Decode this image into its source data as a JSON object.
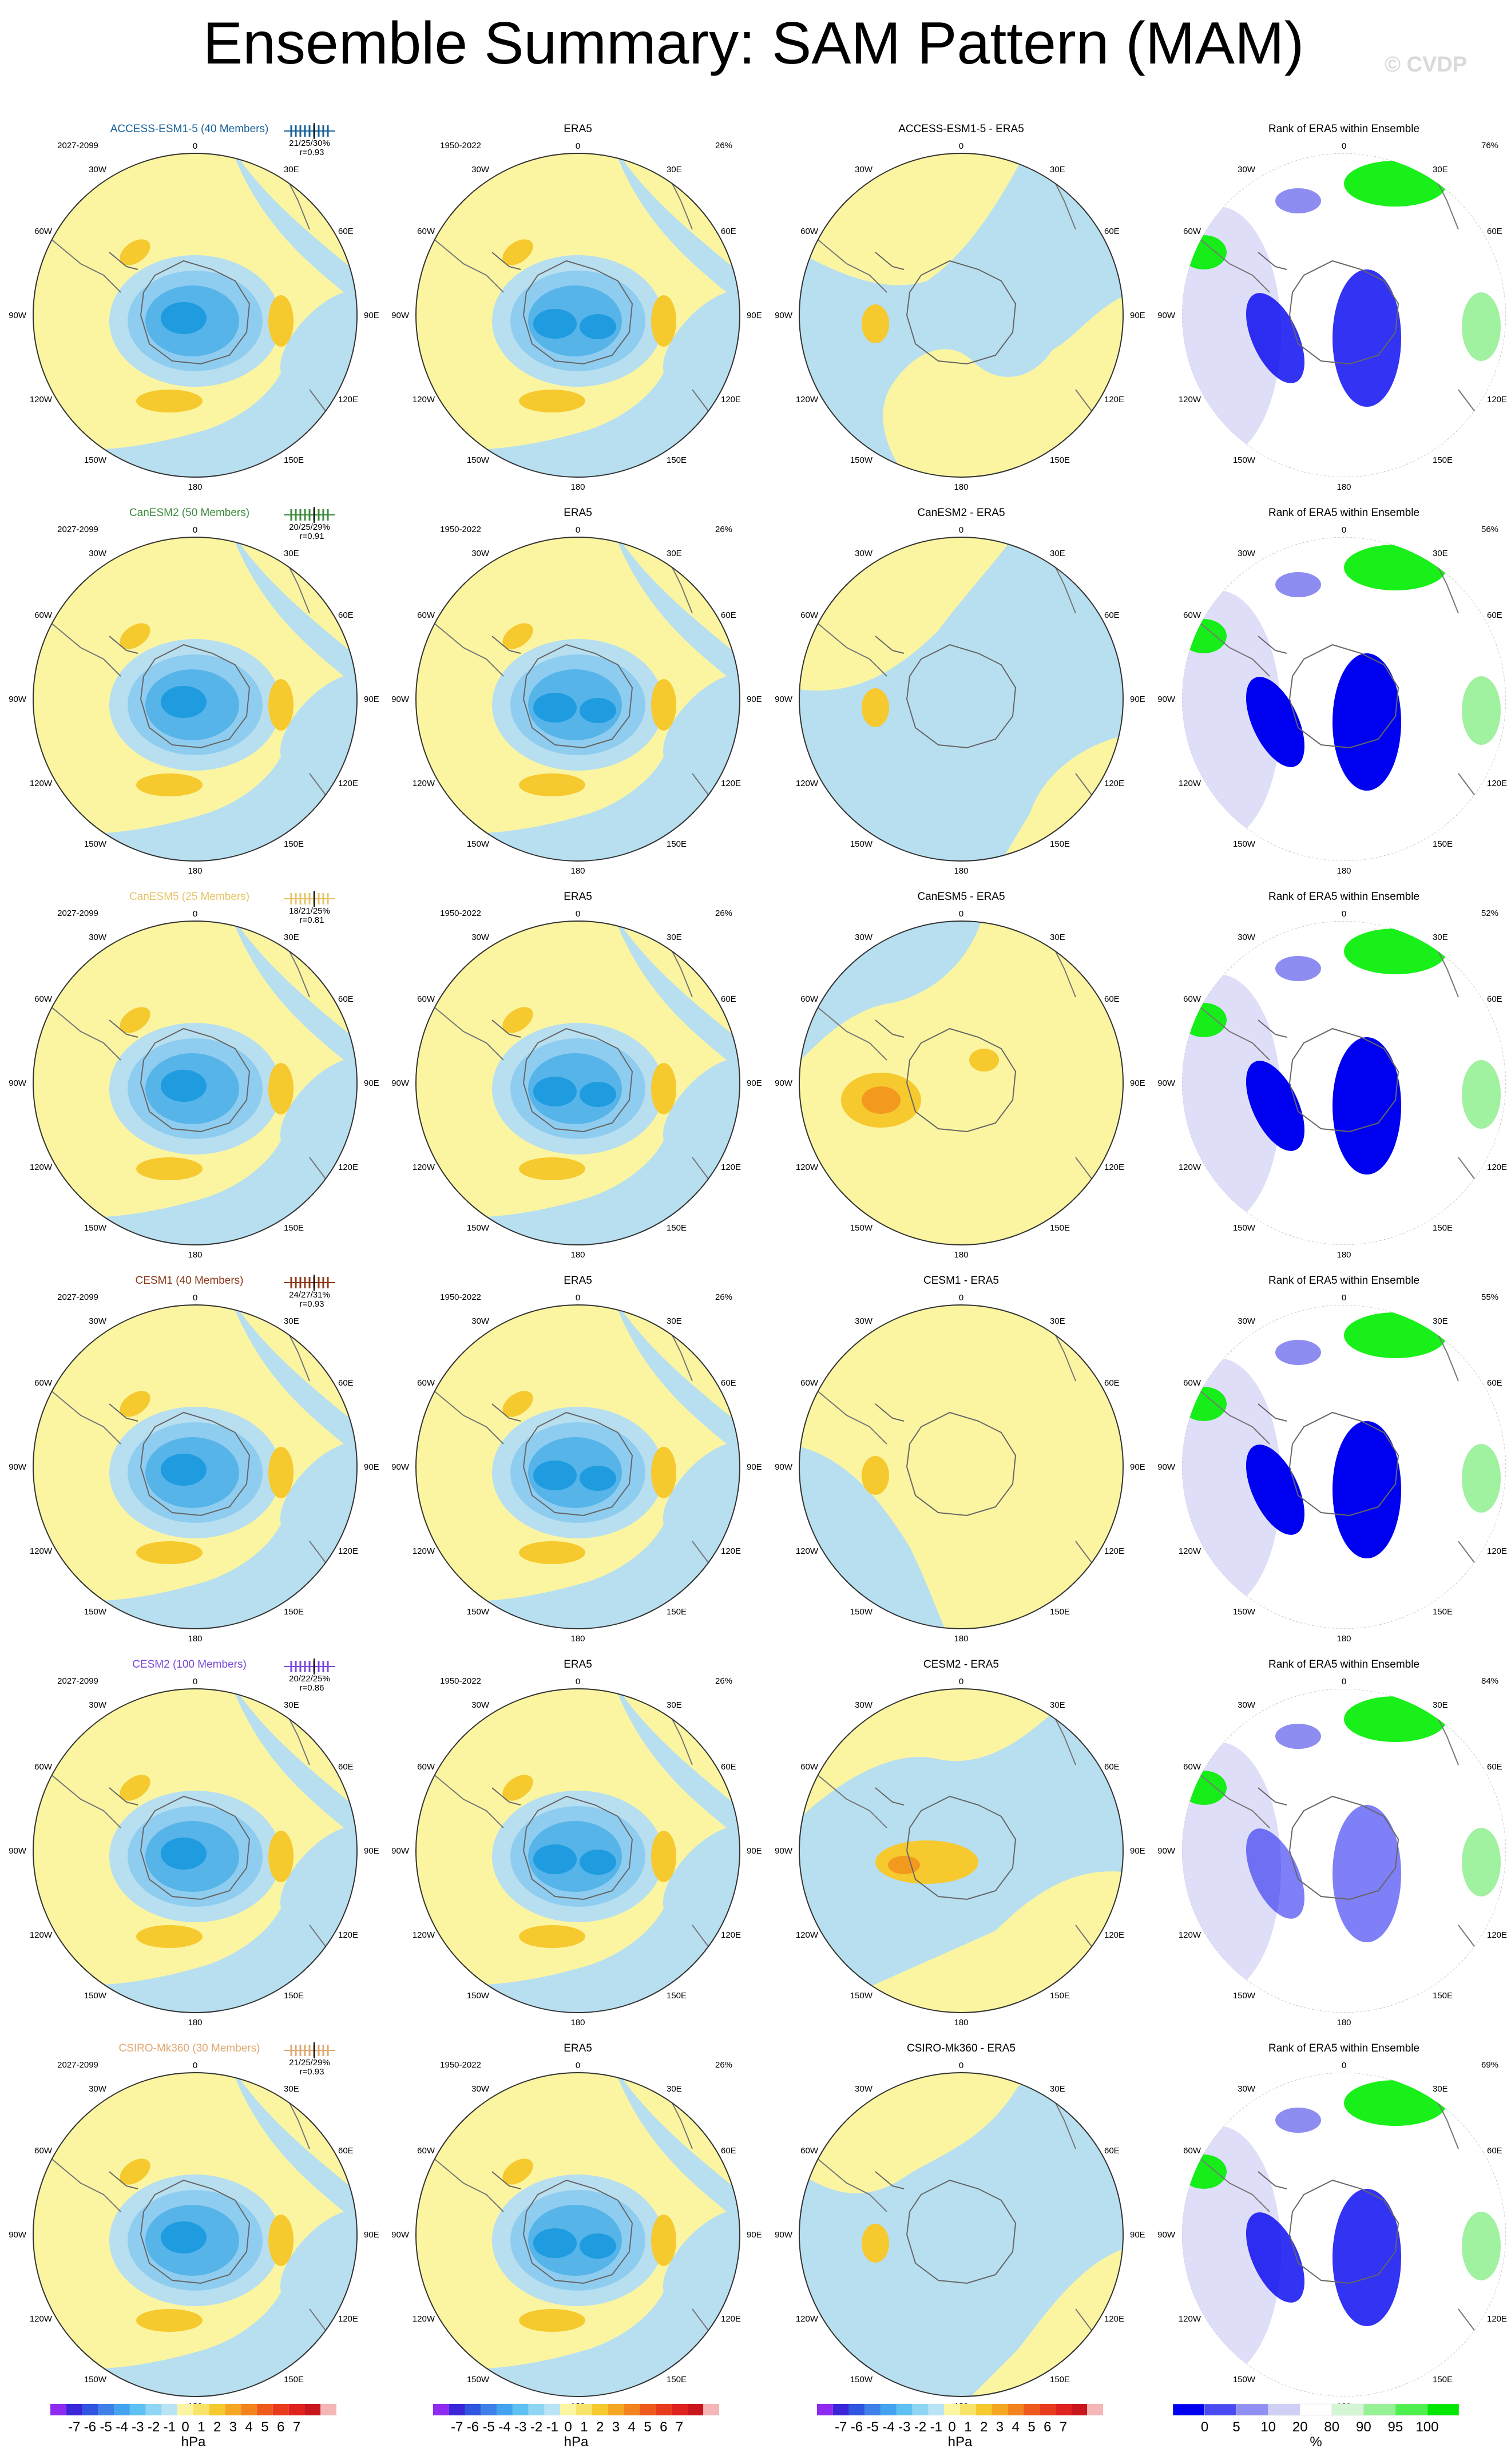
{
  "title": "Ensemble Summary: SAM Pattern (MAM)",
  "watermark": "© CVDP",
  "colors": {
    "ocean_blue": "#b7dff0",
    "neutral_yellow": "#fbf5a2",
    "blue_1": "#8fcdf0",
    "blue_2": "#56b4e9",
    "blue_3": "#1f9be0",
    "blue_4": "#3b63d8",
    "orange_1": "#f6c92f",
    "orange_2": "#f39a1e",
    "rank_blue": "#0000f0",
    "rank_green": "#00ee00"
  },
  "rows": [
    {
      "model_label": "ACCESS-ESM1-5 (40 Members)",
      "model_color": "#16609a",
      "stats": "21/25/30%",
      "corr": "r=0.93",
      "diff_title": "ACCESS-ESM1-5 - ERA5",
      "rank_pct": "76%"
    },
    {
      "model_label": "CanESM2 (50 Members)",
      "model_color": "#3c8a3c",
      "stats": "20/25/29%",
      "corr": "r=0.91",
      "diff_title": "CanESM2 - ERA5",
      "rank_pct": "56%"
    },
    {
      "model_label": "CanESM5 (25 Members)",
      "model_color": "#e6c466",
      "stats": "18/21/25%",
      "corr": "r=0.81",
      "diff_title": "CanESM5 - ERA5",
      "rank_pct": "52%"
    },
    {
      "model_label": "CESM1 (40 Members)",
      "model_color": "#8b3a1a",
      "stats": "24/27/31%",
      "corr": "r=0.93",
      "diff_title": "CESM1 - ERA5",
      "rank_pct": "55%"
    },
    {
      "model_label": "CESM2 (100 Members)",
      "model_color": "#7b4ad6",
      "stats": "20/22/25%",
      "corr": "r=0.86",
      "diff_title": "CESM2 - ERA5",
      "rank_pct": "84%"
    },
    {
      "model_label": "CSIRO-Mk360 (30 Members)",
      "model_color": "#e0a872",
      "stats": "21/25/29%",
      "corr": "r=0.93",
      "diff_title": "CSIRO-Mk360 - ERA5",
      "rank_pct": "69%"
    }
  ],
  "model_period": "2027-2099",
  "obs_title": "ERA5",
  "obs_period": "1950-2022",
  "obs_pct": "26%",
  "rank_title": "Rank of ERA5 within Ensemble",
  "map_labels": {
    "top": "0",
    "bottom": "180",
    "left": "90W",
    "right": "90E",
    "ul_1": "30W",
    "ul_2": "60W",
    "ll_1": "120W",
    "ll_2": "150W",
    "ur_1": "30E",
    "ur_2": "60E",
    "lr_1": "120E",
    "lr_2": "150E"
  },
  "colorbars": {
    "hpa_labels": [
      "-7",
      "-6",
      "-5",
      "-4",
      "-3",
      "-2",
      "-1",
      "0",
      "1",
      "2",
      "3",
      "4",
      "5",
      "6",
      "7"
    ],
    "hpa_colors": [
      "#8f2bf0",
      "#3a25d8",
      "#3055e0",
      "#3f7fe8",
      "#43a3ee",
      "#5fc0f2",
      "#8fd6f4",
      "#b9e4f6",
      "#fbf5a2",
      "#f8e36a",
      "#f6c92f",
      "#f5a623",
      "#f2831e",
      "#ee5a1c",
      "#e83a1c",
      "#e0221e",
      "#c8161c",
      "#f4b6b6"
    ],
    "hpa_unit": "hPa",
    "rank_labels": [
      "0",
      "5",
      "10",
      "20",
      "80",
      "90",
      "95",
      "100"
    ],
    "rank_colors": [
      "#0000f0",
      "#4a4af2",
      "#9090f2",
      "#d0d0f6",
      "#ffffff",
      "#d4f6d4",
      "#96f096",
      "#4ef04e",
      "#00e800"
    ],
    "rank_unit": "%"
  }
}
